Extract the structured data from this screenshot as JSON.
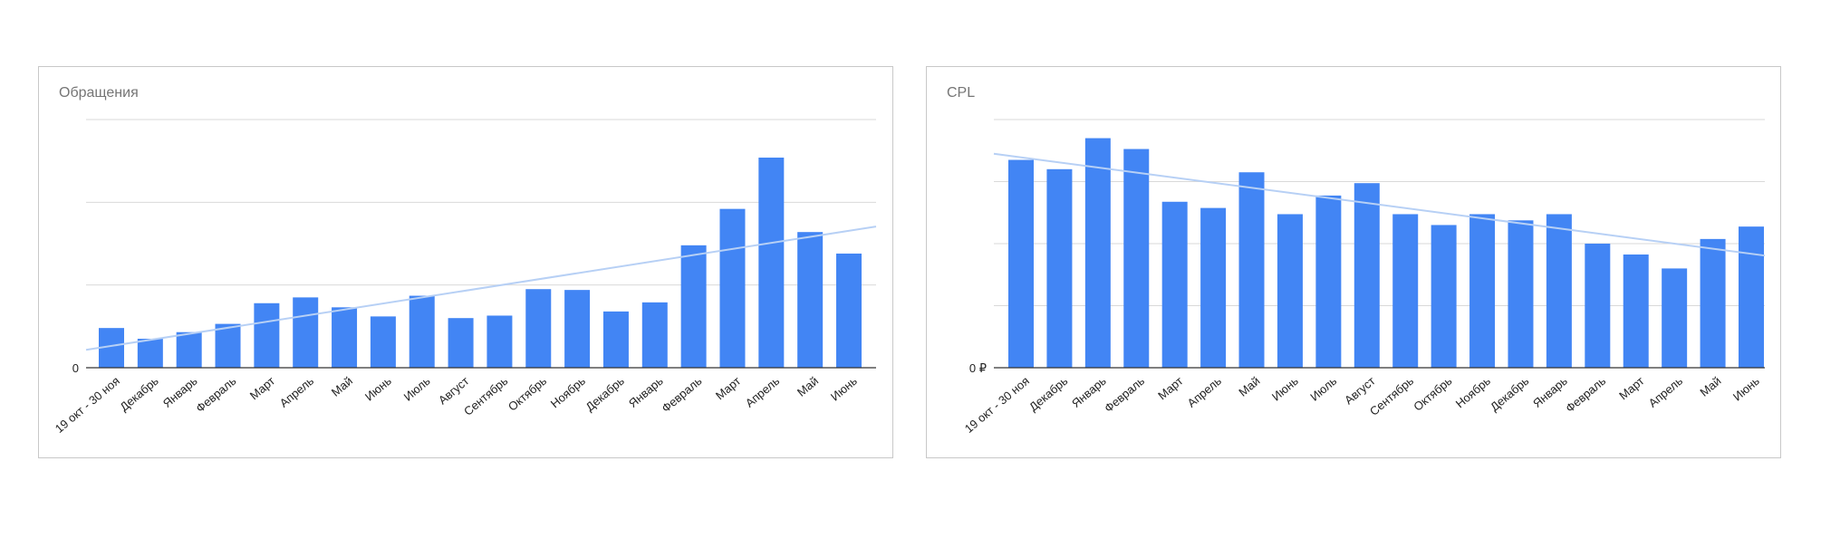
{
  "chart_data": [
    {
      "type": "bar",
      "title": "Обращения",
      "xlabel": "",
      "ylabel": "",
      "ylim": [
        0,
        300
      ],
      "yticks": [
        0,
        100,
        200,
        300
      ],
      "y_tick_labels": [
        "0",
        "",
        "",
        ""
      ],
      "grid": true,
      "legend": "none",
      "trendline": true,
      "bar_color": "#4285f4",
      "trend_color": "#b7d0f5",
      "categories": [
        "19 окт - 30 ноя",
        "Декабрь",
        "Январь",
        "Февраль",
        "Март",
        "Апрель",
        "Май",
        "Июнь",
        "Июль",
        "Август",
        "Сентябрь",
        "Октябрь",
        "Ноябрь",
        "Декабрь",
        "Январь",
        "Февраль",
        "Март",
        "Апрель",
        "Май",
        "Июнь"
      ],
      "values": [
        48,
        35,
        43,
        53,
        78,
        85,
        73,
        62,
        87,
        60,
        63,
        95,
        94,
        68,
        79,
        148,
        192,
        254,
        164,
        138
      ]
    },
    {
      "type": "bar",
      "title": "CPL",
      "xlabel": "",
      "ylabel": "",
      "ylim": [
        0,
        8000
      ],
      "yticks": [
        0,
        2000,
        4000,
        6000,
        8000
      ],
      "y_tick_labels": [
        "0 ₽",
        "",
        "",
        "",
        ""
      ],
      "grid": true,
      "legend": "none",
      "trendline": true,
      "bar_color": "#4285f4",
      "trend_color": "#b7d0f5",
      "categories": [
        "19 окт - 30 ноя",
        "Декабрь",
        "Январь",
        "Февраль",
        "Март",
        "Апрель",
        "Май",
        "Июнь",
        "Июль",
        "Август",
        "Сентябрь",
        "Октябрь",
        "Ноябрь",
        "Декабрь",
        "Январь",
        "Февраль",
        "Март",
        "Апрель",
        "Май",
        "Июнь"
      ],
      "values": [
        6700,
        6400,
        7400,
        7050,
        5350,
        5150,
        6300,
        4950,
        5550,
        5950,
        4950,
        4600,
        4950,
        4750,
        4950,
        4000,
        3650,
        3200,
        4150,
        4550
      ]
    }
  ]
}
